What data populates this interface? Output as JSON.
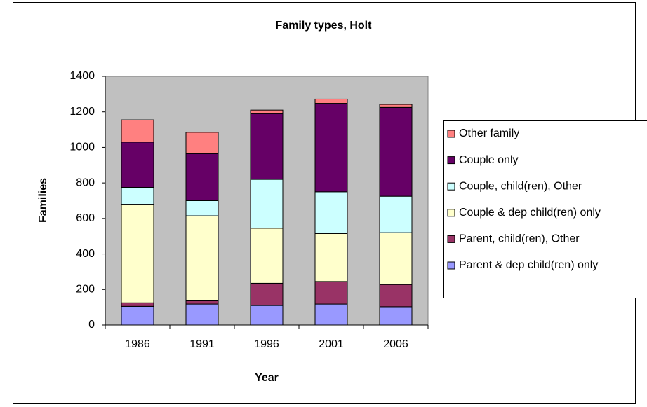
{
  "chart_data": {
    "type": "stacked_bar",
    "title": "Family types, Holt",
    "x_label": "Year",
    "y_label": "Families",
    "categories": [
      "1986",
      "1991",
      "1996",
      "2001",
      "2006"
    ],
    "series": [
      {
        "name": "Parent & dep child(ren) only",
        "color": "#9999ff",
        "values": [
          105,
          118,
          110,
          118,
          103
        ]
      },
      {
        "name": "Parent, child(ren), Other",
        "color": "#993366",
        "values": [
          20,
          22,
          125,
          127,
          125
        ]
      },
      {
        "name": "Couple & dep child(ren) only",
        "color": "#ffffcc",
        "values": [
          555,
          475,
          310,
          270,
          292
        ]
      },
      {
        "name": "Couple, child(ren), Other",
        "color": "#ccffff",
        "values": [
          95,
          85,
          275,
          235,
          205
        ]
      },
      {
        "name": "Couple only",
        "color": "#660066",
        "values": [
          255,
          265,
          370,
          498,
          500
        ]
      },
      {
        "name": "Other family",
        "color": "#ff8080",
        "values": [
          125,
          120,
          20,
          24,
          17
        ]
      }
    ],
    "ylim": [
      0,
      1400
    ],
    "yticks": [
      0,
      200,
      400,
      600,
      800,
      1000,
      1200,
      1400
    ],
    "legend": "right"
  }
}
